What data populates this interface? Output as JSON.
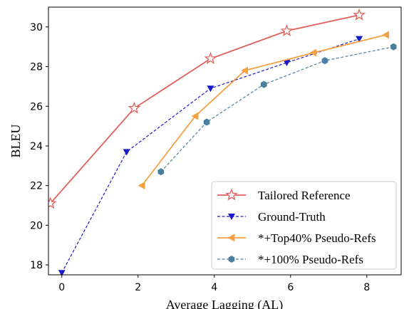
{
  "chart_data": {
    "type": "line",
    "xlabel": "Average Lagging (AL)",
    "ylabel": "BLEU",
    "xlim": [
      -0.35,
      8.9
    ],
    "ylim": [
      17.5,
      31.0
    ],
    "xticks": [
      0,
      2,
      4,
      6,
      8
    ],
    "yticks": [
      18,
      20,
      22,
      24,
      26,
      28,
      30
    ],
    "grid": false,
    "legend_position": "lower-right",
    "series": [
      {
        "name": "Tailored Reference",
        "color": "#e0605a",
        "line_style": "solid",
        "marker": "star-open",
        "x": [
          -0.3,
          1.9,
          3.9,
          5.9,
          7.8
        ],
        "y": [
          21.1,
          25.9,
          28.4,
          29.8,
          30.6
        ]
      },
      {
        "name": "Ground-Truth",
        "color": "#1a1acc",
        "line_style": "dashed",
        "marker": "triangle-down",
        "x": [
          0.0,
          1.7,
          3.9,
          5.9,
          7.8
        ],
        "y": [
          17.6,
          23.7,
          26.9,
          28.2,
          29.4
        ]
      },
      {
        "name": "*+Top40% Pseudo-Refs",
        "color": "#f5a043",
        "line_style": "solid",
        "marker": "triangle-left",
        "x": [
          2.1,
          3.5,
          4.8,
          6.6,
          8.5
        ],
        "y": [
          22.0,
          25.5,
          27.8,
          28.7,
          29.6
        ]
      },
      {
        "name": "*+100% Pseudo-Refs",
        "color": "#4a7fa0",
        "line_style": "dashed",
        "marker": "hexagon",
        "x": [
          2.6,
          3.8,
          5.3,
          6.9,
          8.7
        ],
        "y": [
          22.7,
          25.2,
          27.1,
          28.3,
          29.0
        ]
      }
    ]
  }
}
